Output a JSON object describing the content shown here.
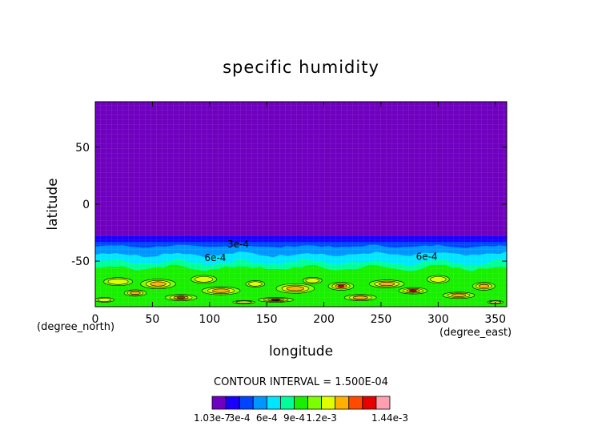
{
  "chart_data": {
    "type": "heatmap",
    "title": "specific humidity",
    "xlabel": "longitude",
    "ylabel": "latitude",
    "x_unit": "(degree_east)",
    "y_unit": "(degree_north)",
    "xlim": [
      0,
      360
    ],
    "ylim": [
      -90,
      90
    ],
    "x_ticks": [
      0,
      50,
      100,
      150,
      200,
      250,
      300,
      350
    ],
    "y_ticks": [
      -50,
      0,
      50
    ],
    "contour_interval_text": "CONTOUR INTERVAL = 1.500E-04",
    "contour_labels": [
      {
        "text": "3e-4",
        "lon": 125,
        "lat": -38
      },
      {
        "text": "6e-4",
        "lon": 105,
        "lat": -50
      },
      {
        "text": "6e-4",
        "lon": 290,
        "lat": -49
      }
    ],
    "colorbar": {
      "colors": [
        "#7000c0",
        "#1a00ff",
        "#0044ff",
        "#0096ff",
        "#00e6ff",
        "#00ff99",
        "#18f000",
        "#7cff00",
        "#dfff00",
        "#ffb000",
        "#ff4a00",
        "#e60000",
        "#ff9fb0"
      ],
      "labels": [
        "1.03e-7",
        "3e-4",
        "6e-4",
        "9e-4",
        "1.2e-3",
        "1.44e-3"
      ]
    },
    "profile": [
      {
        "lat": 90,
        "value": 1.03e-06
      },
      {
        "lat": -28,
        "value": 1e-05
      },
      {
        "lat": -33,
        "value": 0.00016
      },
      {
        "lat": -37,
        "value": 0.00024
      },
      {
        "lat": -43,
        "value": 0.00045
      },
      {
        "lat": -50,
        "value": 0.00062
      },
      {
        "lat": -60,
        "value": 0.00078
      },
      {
        "lat": -70,
        "value": 0.00092
      },
      {
        "lat": -80,
        "value": 0.00105
      },
      {
        "lat": -90,
        "value": 0.00098
      }
    ]
  }
}
